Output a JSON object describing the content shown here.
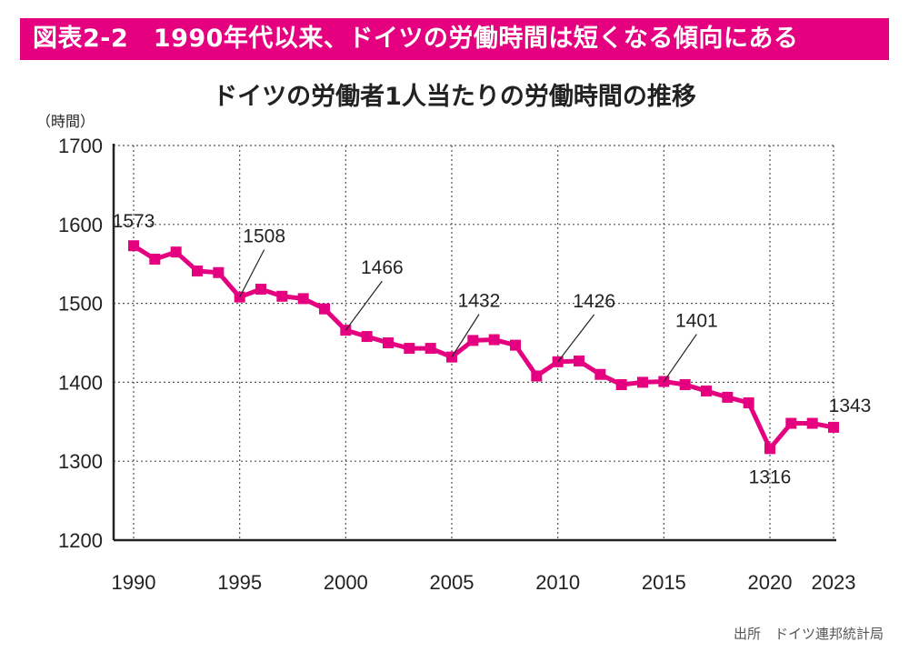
{
  "banner": {
    "text": "図表2-2　1990年代以来、ドイツの労働時間は短くなる傾向にある"
  },
  "source": "出所　ドイツ連邦統計局",
  "colors": {
    "accent": "#e4007f",
    "grid": "#555555",
    "axis": "#222222"
  },
  "chart_data": {
    "type": "line",
    "title": "ドイツの労働者1人当たりの労働時間の推移",
    "ylabel": "（時間）",
    "xlabel": "",
    "ylim": [
      1200,
      1700
    ],
    "yticks": [
      1200,
      1300,
      1400,
      1500,
      1600,
      1700
    ],
    "xticks": [
      1990,
      1995,
      2000,
      2005,
      2010,
      2015,
      2020,
      2023
    ],
    "grid": true,
    "x": [
      1990,
      1991,
      1992,
      1993,
      1994,
      1995,
      1996,
      1997,
      1998,
      1999,
      2000,
      2001,
      2002,
      2003,
      2004,
      2005,
      2006,
      2007,
      2008,
      2009,
      2010,
      2011,
      2012,
      2013,
      2014,
      2015,
      2016,
      2017,
      2018,
      2019,
      2020,
      2021,
      2022,
      2023
    ],
    "series": [
      {
        "name": "労働時間",
        "values": [
          1573,
          1556,
          1565,
          1541,
          1539,
          1508,
          1518,
          1509,
          1506,
          1493,
          1466,
          1458,
          1450,
          1443,
          1443,
          1432,
          1453,
          1454,
          1447,
          1408,
          1426,
          1427,
          1410,
          1397,
          1400,
          1401,
          1397,
          1389,
          1381,
          1374,
          1316,
          1348,
          1348,
          1343
        ]
      }
    ],
    "annotations": [
      {
        "year": 1990,
        "text": "1573"
      },
      {
        "year": 1995,
        "text": "1508"
      },
      {
        "year": 2000,
        "text": "1466"
      },
      {
        "year": 2005,
        "text": "1432"
      },
      {
        "year": 2010,
        "text": "1426"
      },
      {
        "year": 2015,
        "text": "1401"
      },
      {
        "year": 2020,
        "text": "1316"
      },
      {
        "year": 2023,
        "text": "1343"
      }
    ]
  }
}
